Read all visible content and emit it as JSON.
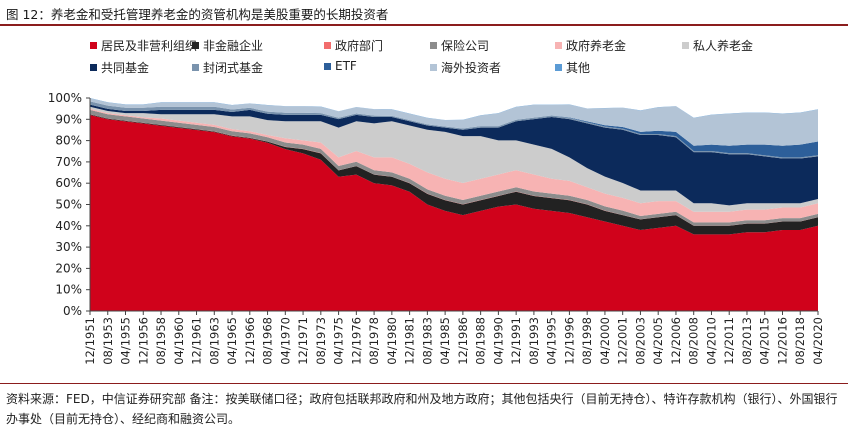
{
  "title": "图 12：养老金和受托管理养老金的资管机构是美股重要的长期投资者",
  "note": "资料来源：FED，中信证券研究部 备注：按美联储口径；政府包括联邦政府和州及地方政府；其他包括央行（目前无持仓）、特许存款机构（银行）、外国银行办事处（目前无持仓）、经纪商和融资公司。",
  "chart_data": {
    "type": "area",
    "stacked": true,
    "ylim": [
      0,
      100
    ],
    "yticks": [
      "0%",
      "10%",
      "20%",
      "30%",
      "40%",
      "50%",
      "60%",
      "70%",
      "80%",
      "90%",
      "100%"
    ],
    "grid": false,
    "legend_position": "top",
    "x": [
      "12/1951",
      "08/1953",
      "04/1955",
      "12/1956",
      "08/1958",
      "04/1960",
      "12/1961",
      "08/1963",
      "04/1965",
      "12/1966",
      "08/1968",
      "04/1970",
      "12/1971",
      "08/1973",
      "04/1975",
      "12/1976",
      "08/1978",
      "04/1980",
      "12/1981",
      "08/1983",
      "04/1985",
      "12/1986",
      "08/1988",
      "04/1990",
      "12/1991",
      "08/1993",
      "04/1995",
      "12/1996",
      "08/1998",
      "04/2000",
      "12/2001",
      "08/2003",
      "04/2005",
      "12/2006",
      "08/2008",
      "04/2010",
      "12/2011",
      "08/2013",
      "04/2015",
      "12/2016",
      "08/2018",
      "04/2020"
    ],
    "series": [
      {
        "name": "居民及非营利组织",
        "color": "#d0021b",
        "values": [
          92,
          90,
          89,
          88,
          87,
          86,
          85,
          84,
          82,
          81,
          79,
          76,
          74,
          71,
          63,
          64,
          60,
          59,
          56,
          50,
          47,
          45,
          47,
          49,
          50,
          48,
          47,
          46,
          44,
          42,
          40,
          38,
          39,
          40,
          36,
          36,
          36,
          37,
          37,
          38,
          38,
          40
        ]
      },
      {
        "name": "非金融企业",
        "color": "#222222",
        "values": [
          0.3,
          0.3,
          0.3,
          0.3,
          0.3,
          0.3,
          0.3,
          0.3,
          0.3,
          0.3,
          0.5,
          1,
          2,
          3,
          3,
          4,
          4,
          4,
          4,
          5,
          5,
          5,
          5,
          5,
          6,
          6,
          6,
          6,
          6,
          5,
          5,
          5,
          5,
          5,
          4,
          4,
          4,
          4,
          4,
          4,
          4,
          4
        ]
      },
      {
        "name": "政府部门",
        "color": "#f26d6d",
        "values": [
          0.1,
          0.1,
          0.1,
          0.1,
          0.1,
          0.1,
          0.1,
          0.1,
          0.1,
          0.1,
          0.1,
          0.1,
          0.1,
          0.1,
          0.1,
          0.1,
          0.1,
          0.1,
          0.1,
          0.1,
          0.1,
          0.1,
          0.1,
          0.1,
          0.1,
          0.1,
          0.1,
          0.1,
          0.1,
          0.1,
          0.1,
          0.1,
          0.1,
          0.1,
          0.1,
          0.1,
          0.1,
          0.1,
          0.1,
          0.1,
          0.1,
          0.1
        ]
      },
      {
        "name": "保险公司",
        "color": "#8c8c8c",
        "values": [
          2,
          2,
          2,
          2,
          2,
          2,
          2,
          2,
          2,
          2,
          2,
          2,
          2,
          2,
          2,
          2,
          2,
          2,
          2,
          2,
          2,
          2,
          2,
          2,
          2,
          2,
          2,
          2,
          2,
          2,
          2,
          1.5,
          1.5,
          1.5,
          1.5,
          1.5,
          1.5,
          1.5,
          1.5,
          1.5,
          1.5,
          1.5
        ]
      },
      {
        "name": "政府养老金",
        "color": "#f7b3b3",
        "values": [
          0.5,
          0.5,
          0.5,
          0.5,
          1,
          1,
          1,
          1,
          1,
          1,
          1,
          2,
          2,
          3,
          4,
          5,
          6,
          7,
          7,
          8,
          8,
          8,
          8,
          8,
          8,
          8,
          7,
          7,
          6,
          6,
          6,
          6,
          6,
          5,
          5,
          5,
          5,
          5,
          5,
          5,
          5,
          5
        ]
      },
      {
        "name": "私人养老金",
        "color": "#cccccc",
        "values": [
          1,
          1,
          1,
          2,
          2,
          3,
          4,
          5,
          6,
          7,
          7,
          8,
          9,
          10,
          14,
          14,
          16,
          17,
          18,
          20,
          22,
          22,
          20,
          16,
          14,
          14,
          14,
          11,
          9,
          8,
          7,
          6,
          5,
          5,
          4,
          4,
          3,
          3,
          3,
          2,
          2,
          2
        ]
      },
      {
        "name": "共同基金",
        "color": "#0c2a5b",
        "values": [
          1,
          1,
          1,
          1,
          2,
          2,
          2,
          2,
          2,
          3,
          3,
          3,
          3,
          3,
          4,
          3,
          3,
          2,
          2,
          2,
          2,
          3,
          4,
          6,
          9,
          12,
          15,
          18,
          21,
          23,
          25,
          26,
          26,
          25,
          24,
          24,
          24,
          23,
          22,
          21,
          21,
          20
        ]
      },
      {
        "name": "封闭式基金",
        "color": "#7a93ad",
        "values": [
          1.5,
          1.5,
          1.5,
          1.5,
          1.5,
          1.5,
          1.5,
          1.5,
          1.2,
          1,
          1,
          1,
          1,
          0.8,
          0.6,
          0.6,
          0.6,
          0.5,
          0.5,
          0.5,
          0.5,
          0.6,
          0.7,
          0.7,
          0.7,
          0.7,
          0.6,
          0.6,
          0.5,
          0.5,
          0.5,
          0.5,
          0.5,
          0.5,
          0.5,
          0.5,
          0.5,
          0.5,
          0.5,
          0.5,
          0.5,
          0.5
        ]
      },
      {
        "name": "ETF",
        "color": "#2d5f9a",
        "values": [
          0,
          0,
          0,
          0,
          0,
          0,
          0,
          0,
          0,
          0,
          0,
          0,
          0,
          0,
          0,
          0,
          0,
          0,
          0,
          0,
          0,
          0,
          0,
          0,
          0,
          0,
          0.1,
          0.2,
          0.4,
          0.6,
          0.8,
          1,
          1.5,
          2,
          2.5,
          3,
          3.5,
          4,
          5,
          5.5,
          6,
          6.5
        ]
      },
      {
        "name": "海外投资者",
        "color": "#b3c4d6",
        "values": [
          1.5,
          1.5,
          1.5,
          1.5,
          2,
          2,
          2,
          2,
          2,
          2,
          3,
          3,
          3,
          3,
          3,
          3,
          3,
          3,
          3,
          3,
          3,
          4,
          5,
          6,
          6,
          6,
          5,
          6,
          6,
          8,
          9,
          10,
          11,
          12,
          13,
          14,
          15,
          15,
          15,
          15,
          15,
          15
        ]
      },
      {
        "name": "其他",
        "color": "#5b9bd5",
        "values": [
          0.1,
          0.1,
          0.1,
          0.1,
          0.1,
          0.1,
          0.1,
          0.1,
          0.1,
          0.1,
          0.1,
          0.1,
          0.1,
          0.1,
          0.1,
          0.1,
          0.1,
          0.1,
          0.1,
          0.1,
          0.1,
          0.1,
          0.1,
          0.1,
          0.1,
          0.1,
          0.1,
          0.1,
          0.1,
          0.1,
          0.1,
          0.1,
          0.1,
          0.1,
          0.1,
          0.1,
          0.1,
          0.1,
          0.1,
          0.1,
          0.1,
          0.1
        ]
      }
    ]
  }
}
